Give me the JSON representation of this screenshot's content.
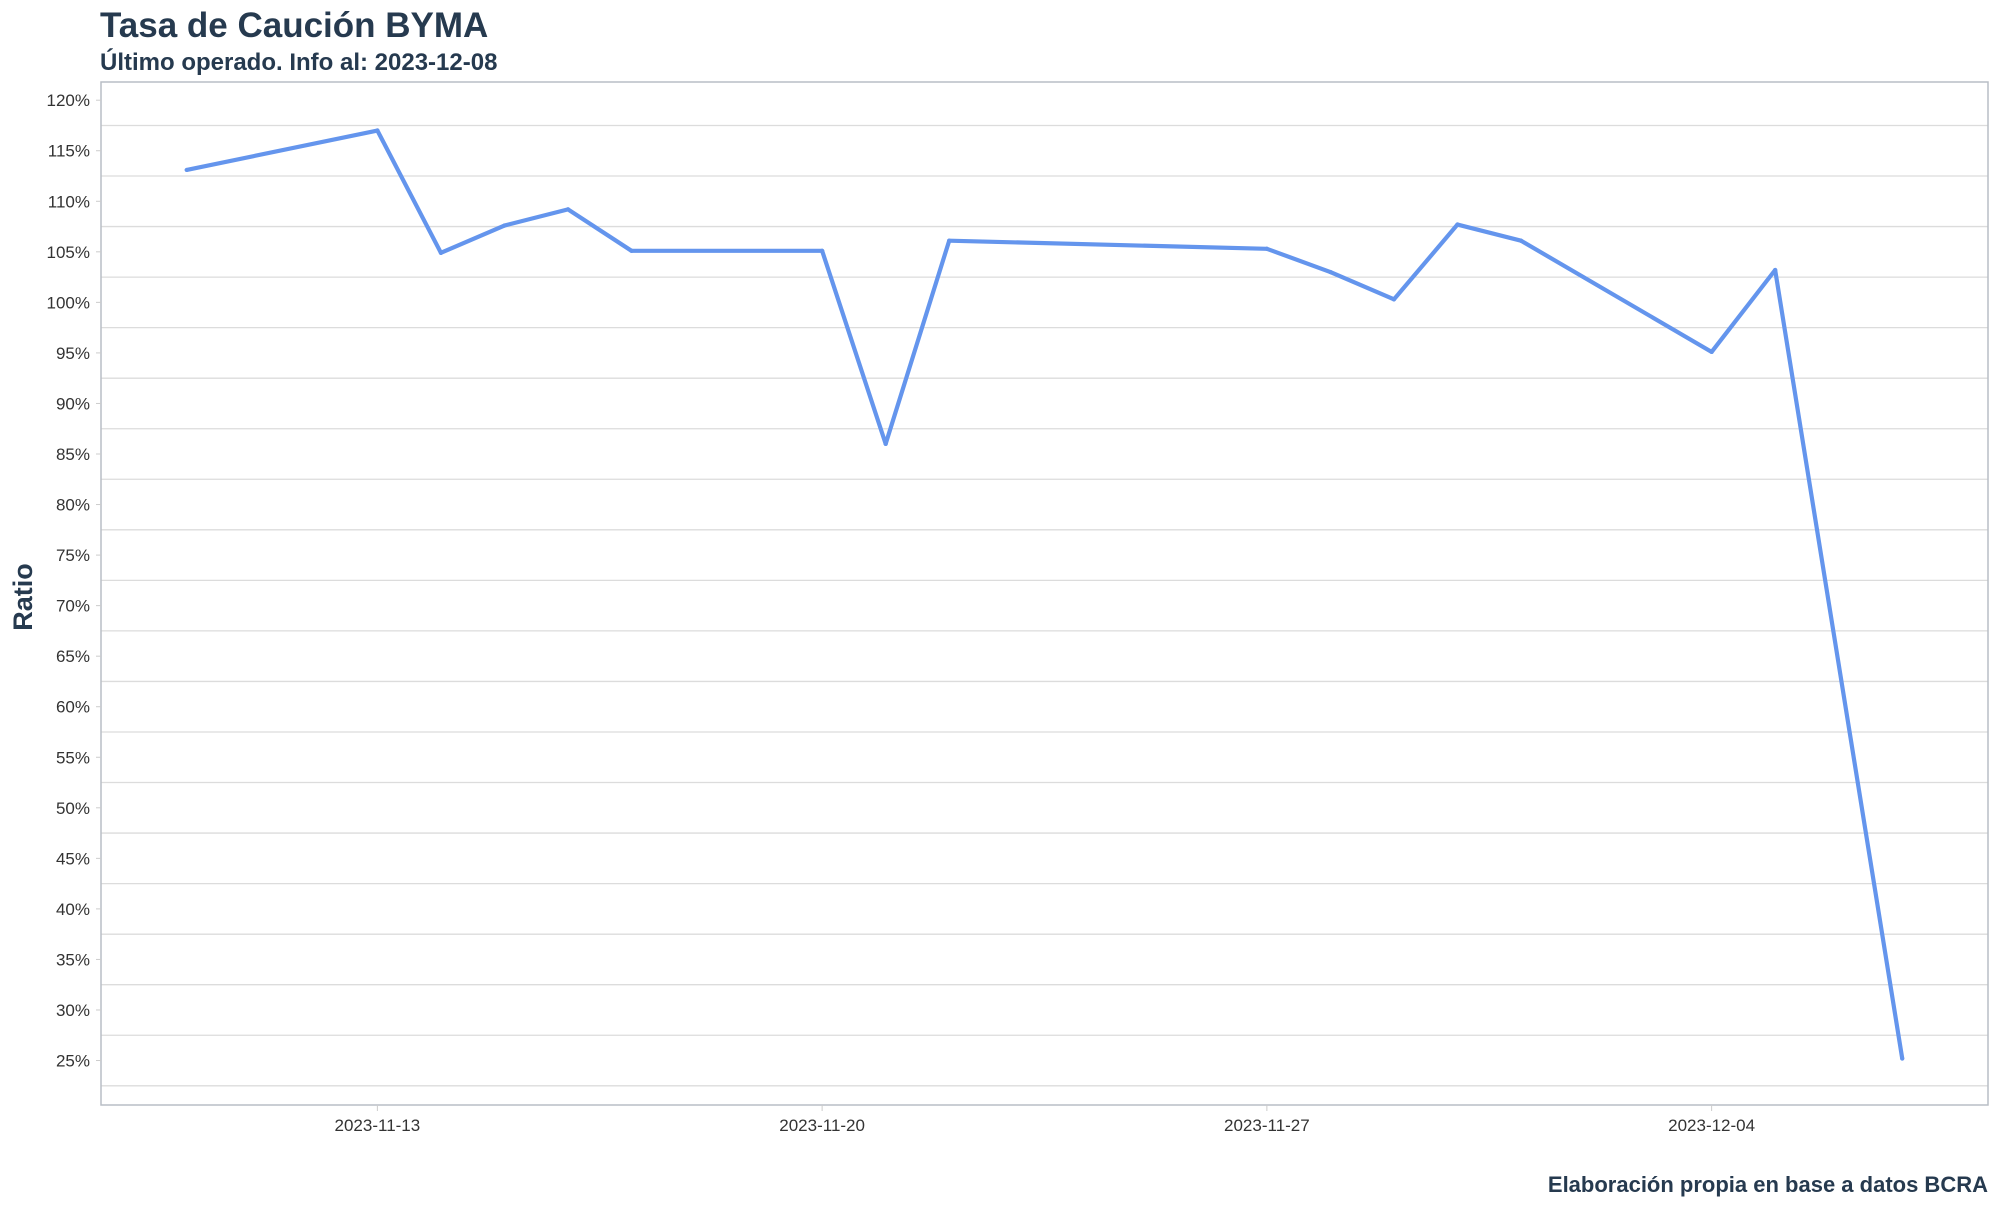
{
  "chart_data": {
    "type": "line",
    "title": "Tasa de Caución BYMA",
    "subtitle": "Último operado. Info al: 2023-12-08",
    "caption": "Elaboración propia en base a datos BCRA",
    "xlabel": "",
    "ylabel": "Ratio",
    "x": [
      "2023-11-10",
      "2023-11-13",
      "2023-11-14",
      "2023-11-15",
      "2023-11-16",
      "2023-11-17",
      "2023-11-20",
      "2023-11-21",
      "2023-11-22",
      "2023-11-27",
      "2023-11-28",
      "2023-11-29",
      "2023-11-30",
      "2023-12-01",
      "2023-12-04",
      "2023-12-05",
      "2023-12-07"
    ],
    "values": [
      113.1,
      117.0,
      104.9,
      107.6,
      109.2,
      105.1,
      105.1,
      86.0,
      106.1,
      105.3,
      103.0,
      100.3,
      107.7,
      106.1,
      95.1,
      103.2,
      25.2
    ],
    "x_ticks": [
      "2023-11-13",
      "2023-11-20",
      "2023-11-27",
      "2023-12-04"
    ],
    "y_ticks": [
      25,
      30,
      35,
      40,
      45,
      50,
      55,
      60,
      65,
      70,
      75,
      80,
      85,
      90,
      95,
      100,
      105,
      110,
      115,
      120
    ],
    "y_tick_labels": [
      "25%",
      "30%",
      "35%",
      "40%",
      "45%",
      "50%",
      "55%",
      "60%",
      "65%",
      "70%",
      "75%",
      "80%",
      "85%",
      "90%",
      "95%",
      "100%",
      "105%",
      "110%",
      "115%",
      "120%"
    ],
    "ylim": [
      20.6,
      121.8
    ],
    "xlim": [
      "2023-11-08.65",
      "2023-12-08.35"
    ],
    "grid": "horizontal minor",
    "line_color": "#6495ED"
  }
}
